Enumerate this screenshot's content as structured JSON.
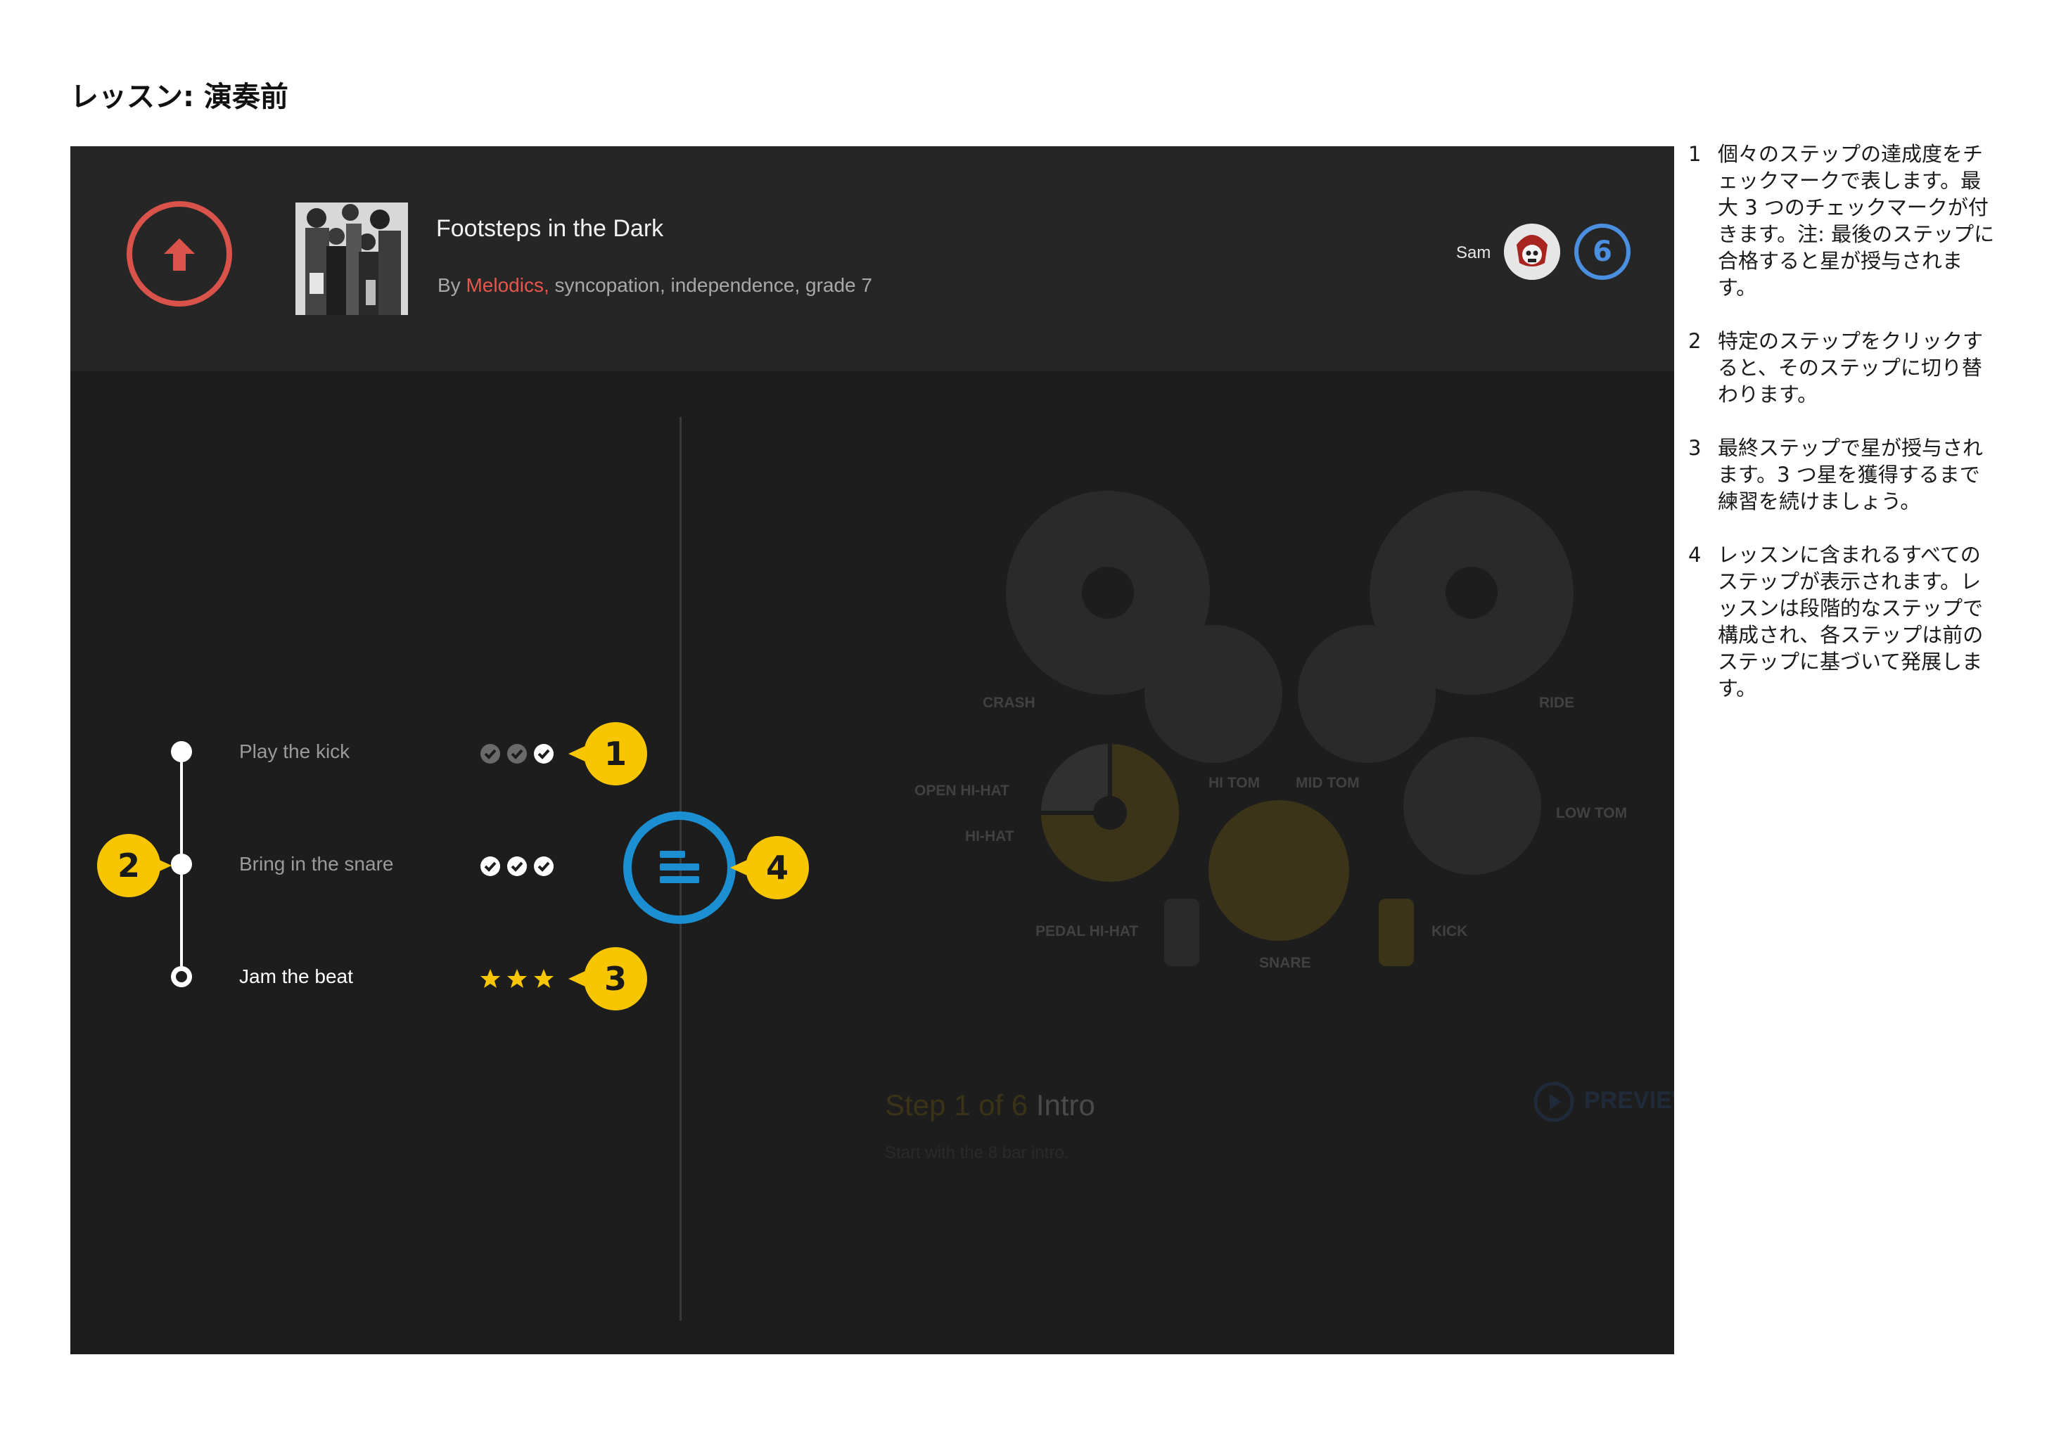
{
  "page_title": "レッスン: 演奏前",
  "header": {
    "song_title": "Footsteps in the Dark",
    "meta_by": "By",
    "meta_author": "Melodics,",
    "meta_tags": "syncopation, independence, grade 7",
    "user_name": "Sam",
    "level": "6"
  },
  "steps": [
    {
      "label": "Play the kick",
      "marks": [
        "check-dim",
        "check-dim",
        "check"
      ]
    },
    {
      "label": "Bring in the snare",
      "marks": [
        "check",
        "check",
        "check"
      ]
    },
    {
      "label": "Jam the beat",
      "marks": [
        "star",
        "star",
        "star"
      ]
    }
  ],
  "callouts": [
    "1",
    "2",
    "3",
    "4"
  ],
  "drum_kit": {
    "crash": "CRASH",
    "ride": "RIDE",
    "open_hihat": "OPEN HI-HAT",
    "hihat": "HI-HAT",
    "hi_tom": "HI TOM",
    "mid_tom": "MID TOM",
    "low_tom": "LOW TOM",
    "pedal_hihat": "PEDAL HI-HAT",
    "snare": "SNARE",
    "kick": "KICK"
  },
  "step_info": {
    "step_text": "Step 1 of 6",
    "step_name": "Intro",
    "description": "Start with the 8 bar intro.",
    "preview_label": "PREVIEW"
  },
  "notes": [
    {
      "num": "1",
      "text": "個々のステップの達成度をチェックマークで表します。最大 3 つのチェックマークが付きます。注: 最後のステップに合格すると星が授与されます。"
    },
    {
      "num": "2",
      "text": "特定のステップをクリックすると、そのステップに切り替わります。"
    },
    {
      "num": "3",
      "text": "最終ステップで星が授与されます。3 つ星を獲得するまで練習を続けましょう。"
    },
    {
      "num": "4",
      "text": "レッスンに含まれるすべてのステップが表示されます。レッスンは段階的なステップで構成され、各ステップは前のステップに基づいて発展します。"
    }
  ],
  "colors": {
    "accent_red": "#d9534a",
    "callout_yellow": "#f7c600",
    "toggle_blue": "#1b8fd2",
    "level_blue": "#4a8fe0"
  }
}
